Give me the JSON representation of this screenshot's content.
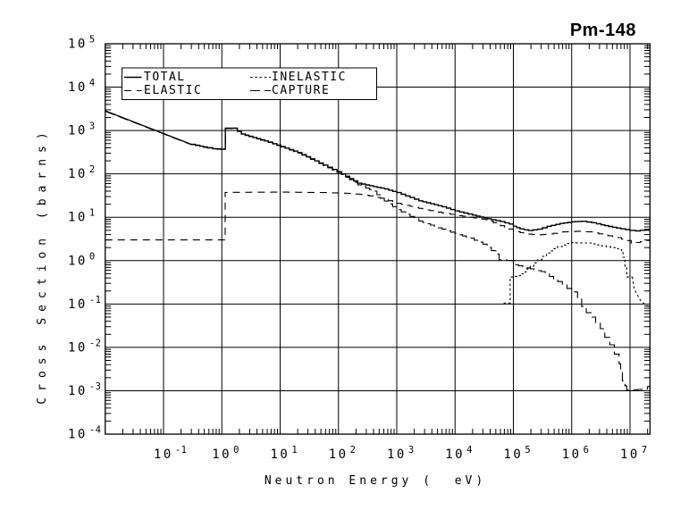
{
  "colors": {
    "ink": "#000000",
    "paper": "#ffffff"
  },
  "chart_data": {
    "type": "line",
    "title": "Pm-148",
    "xlabel": "Neutron Energy (  eV)",
    "ylabel": "Cross Section (barns)",
    "x_scale": "log",
    "y_scale": "log",
    "xlim": [
      0.01,
      22000000
    ],
    "ylim": [
      0.0001,
      100000
    ],
    "grid": true,
    "x_tick_exponents": [
      -1,
      0,
      1,
      2,
      3,
      4,
      5,
      6,
      7
    ],
    "y_tick_exponents": [
      5,
      4,
      3,
      2,
      1,
      0,
      -1,
      -2,
      -3,
      -4
    ],
    "legend": {
      "position": "top-left",
      "entries": [
        {
          "label": "TOTAL",
          "dasharray": ""
        },
        {
          "label": "INELASTIC",
          "dasharray": "2.5 2.8"
        },
        {
          "label": "ELASTIC",
          "dasharray": "8 6"
        },
        {
          "label": "CAPTURE",
          "dasharray": "11 5"
        }
      ]
    },
    "series": [
      {
        "name": "CAPTURE",
        "dasharray": "11 5",
        "stroke_width": 1.1,
        "segments": [
          {
            "mode": "line",
            "points": [
              [
                0.01,
                2780
              ],
              [
                0.3,
                472
              ]
            ]
          },
          {
            "mode": "step",
            "points": [
              [
                0.3,
                472
              ],
              [
                0.42,
                428
              ],
              [
                0.56,
                396
              ],
              [
                0.7,
                374
              ],
              [
                1.12,
                364
              ],
              [
                1.15,
                1110
              ],
              [
                1.57,
                1110
              ],
              [
                2.16,
                815
              ],
              [
                6.3,
                530
              ],
              [
                20,
                302
              ],
              [
                55,
                155
              ],
              [
                113,
                96
              ],
              [
                214,
                56
              ],
              [
                400,
                40
              ],
              [
                520,
                27.5
              ],
              [
                1000,
                15
              ],
              [
                2400,
                8.2
              ],
              [
                6000,
                5.3
              ],
              [
                10000,
                4.2
              ],
              [
                18000,
                3.3
              ],
              [
                30000,
                2.4
              ],
              [
                42000,
                1.7
              ],
              [
                50000,
                1.42
              ],
              [
                57000,
                1.05
              ],
              [
                92000,
                1.0
              ],
              [
                105000,
                0.8
              ],
              [
                170000,
                0.68
              ],
              [
                300000,
                0.56
              ],
              [
                575000,
                0.33
              ],
              [
                1000000,
                0.19
              ],
              [
                1260000,
                0.135
              ],
              [
                1480000,
                0.088
              ],
              [
                1780000,
                0.063
              ],
              [
                2140000,
                0.05
              ],
              [
                2570000,
                0.036
              ],
              [
                3100000,
                0.027
              ],
              [
                3700000,
                0.017
              ],
              [
                4500000,
                0.0115
              ],
              [
                5400000,
                0.007
              ],
              [
                6500000,
                0.0042
              ],
              [
                6900000,
                0.0027
              ],
              [
                7400000,
                0.0017
              ],
              [
                8200000,
                0.0013
              ],
              [
                8800000,
                0.00105
              ],
              [
                11000000,
                0.00105
              ],
              [
                16000000,
                0.0011
              ],
              [
                20000000,
                0.00125
              ],
              [
                22000000,
                0.0014
              ]
            ]
          }
        ]
      },
      {
        "name": "ELASTIC",
        "dasharray": "8 6",
        "stroke_width": 1.1,
        "segments": [
          {
            "mode": "step",
            "points": [
              [
                0.01,
                3.0
              ],
              [
                1.1,
                3.0
              ],
              [
                1.14,
                37.5
              ],
              [
                10,
                38
              ],
              [
                60,
                37
              ],
              [
                150,
                35.5
              ],
              [
                235,
                33.5
              ],
              [
                400,
                30
              ],
              [
                520,
                27.5
              ],
              [
                1000,
                21
              ],
              [
                2400,
                16
              ],
              [
                5000,
                13.2
              ],
              [
                10000,
                11.2
              ],
              [
                18000,
                10
              ],
              [
                34000,
                8.8
              ],
              [
                60000,
                6.4
              ],
              [
                100000,
                4.9
              ],
              [
                150000,
                4.2
              ],
              [
                250000,
                3.9
              ],
              [
                400000,
                4.1
              ],
              [
                700000,
                4.6
              ],
              [
                1200000,
                4.75
              ],
              [
                2000000,
                4.6
              ],
              [
                3500000,
                3.95
              ],
              [
                6000000,
                3.4
              ],
              [
                8500000,
                2.9
              ],
              [
                10500000,
                2.5
              ],
              [
                15000000,
                2.75
              ],
              [
                22000000,
                3.1
              ]
            ]
          }
        ]
      },
      {
        "name": "INELASTIC",
        "dasharray": "2.5 2.8",
        "stroke_width": 1.1,
        "segments": [
          {
            "mode": "step",
            "points": [
              [
                68000,
                0.105
              ],
              [
                86000,
                0.105
              ],
              [
                88000,
                0.42
              ],
              [
                115000,
                0.45
              ],
              [
                152000,
                0.55
              ],
              [
                195000,
                0.75
              ],
              [
                260000,
                1.05
              ],
              [
                370000,
                1.5
              ],
              [
                570000,
                2.1
              ],
              [
                820000,
                2.5
              ],
              [
                1000000,
                2.6
              ],
              [
                1900000,
                2.55
              ],
              [
                2700000,
                2.3
              ],
              [
                3900000,
                2.1
              ],
              [
                5600000,
                1.9
              ],
              [
                7200000,
                1.7
              ],
              [
                7600000,
                1.2
              ],
              [
                8200000,
                0.75
              ],
              [
                8800000,
                0.42
              ],
              [
                11000000,
                0.42
              ]
            ]
          },
          {
            "mode": "line",
            "points": [
              [
                11000000,
                0.42
              ],
              [
                11800000,
                0.22
              ],
              [
                15500000,
                0.115
              ],
              [
                22000000,
                0.082
              ]
            ]
          }
        ]
      },
      {
        "name": "TOTAL",
        "dasharray": "",
        "stroke_width": 1.4,
        "segments": [
          {
            "mode": "line",
            "points": [
              [
                0.01,
                2840
              ],
              [
                0.3,
                480
              ]
            ]
          },
          {
            "mode": "step",
            "points": [
              [
                0.3,
                480
              ],
              [
                0.42,
                435
              ],
              [
                0.56,
                402
              ],
              [
                0.7,
                380
              ],
              [
                1.12,
                370
              ],
              [
                1.15,
                1130
              ],
              [
                1.57,
                1130
              ],
              [
                2.16,
                830
              ],
              [
                6.3,
                540
              ],
              [
                20,
                310
              ],
              [
                55,
                160
              ],
              [
                113,
                100
              ],
              [
                214,
                61
              ],
              [
                400,
                51
              ],
              [
                620,
                45
              ],
              [
                1000,
                37
              ],
              [
                2400,
                24
              ],
              [
                6000,
                17.5
              ],
              [
                10000,
                14
              ],
              [
                20000,
                11.2
              ],
              [
                42000,
                8.8
              ],
              [
                60000,
                8.0
              ],
              [
                85000,
                7.0
              ],
              [
                100000,
                6.2
              ],
              [
                130000,
                5.4
              ],
              [
                180000,
                4.95
              ],
              [
                260000,
                5.3
              ],
              [
                380000,
                6.2
              ],
              [
                630000,
                7.2
              ],
              [
                1000000,
                7.85
              ],
              [
                1500000,
                8.1
              ],
              [
                2200000,
                7.5
              ],
              [
                3200000,
                6.7
              ],
              [
                5000000,
                5.9
              ],
              [
                7000000,
                5.4
              ],
              [
                10000000,
                5.0
              ],
              [
                12500000,
                4.85
              ],
              [
                18000000,
                5.2
              ],
              [
                22000000,
                5.5
              ]
            ]
          }
        ]
      }
    ]
  }
}
